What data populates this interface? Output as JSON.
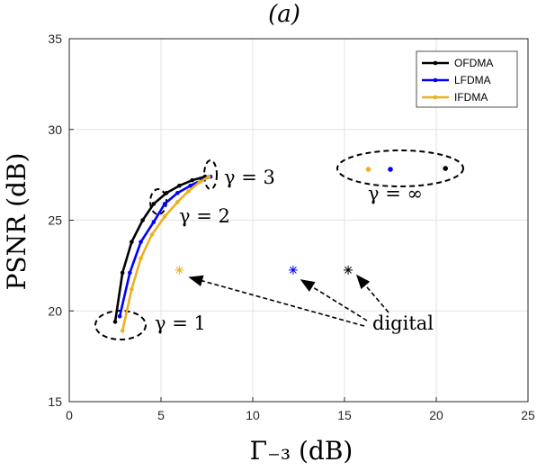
{
  "chart_data": {
    "type": "line",
    "title": "(a)",
    "xlabel": "Γ₋₃ (dB)",
    "ylabel": "PSNR (dB)",
    "xlim": [
      0,
      25
    ],
    "ylim": [
      15,
      35
    ],
    "xticks": [
      0,
      5,
      10,
      15,
      20,
      25
    ],
    "yticks": [
      15,
      20,
      25,
      30,
      35
    ],
    "grid": true,
    "legend_position": "top-right",
    "series": [
      {
        "name": "OFDMA",
        "color": "#000000",
        "x": [
          2.5,
          2.9,
          3.4,
          4.0,
          4.6,
          5.3,
          6.0,
          6.7,
          7.4
        ],
        "y": [
          19.4,
          22.1,
          23.8,
          25.0,
          25.9,
          26.5,
          26.9,
          27.2,
          27.4
        ]
      },
      {
        "name": "LFDMA",
        "color": "#0000ff",
        "x": [
          2.75,
          3.3,
          3.9,
          4.6,
          5.2,
          5.9,
          6.6,
          7.2,
          7.7
        ],
        "y": [
          19.7,
          22.1,
          23.8,
          24.9,
          25.9,
          26.5,
          26.9,
          27.2,
          27.4
        ]
      },
      {
        "name": "IFDMA",
        "color": "#edb120",
        "x": [
          2.9,
          3.4,
          3.9,
          4.5,
          5.2,
          5.9,
          6.5,
          7.1,
          7.6
        ],
        "y": [
          18.9,
          21.2,
          22.9,
          24.2,
          25.2,
          26.0,
          26.6,
          27.1,
          27.4
        ]
      }
    ],
    "infinity_points": [
      {
        "series": "IFDMA",
        "x": 16.3,
        "y": 27.8,
        "color": "#edb120"
      },
      {
        "series": "LFDMA",
        "x": 17.5,
        "y": 27.8,
        "color": "#0000ff"
      },
      {
        "series": "OFDMA",
        "x": 20.5,
        "y": 27.85,
        "color": "#000000"
      }
    ],
    "digital_points": [
      {
        "series": "IFDMA",
        "x": 6.0,
        "y": 22.25,
        "color": "#edb120"
      },
      {
        "series": "LFDMA",
        "x": 12.2,
        "y": 22.25,
        "color": "#0000ff"
      },
      {
        "series": "OFDMA",
        "x": 15.2,
        "y": 22.25,
        "color": "#000000"
      }
    ],
    "annotations": {
      "gamma1": "γ = 1",
      "gamma2": "γ = 2",
      "gamma3": "γ = 3",
      "gamma_inf": "γ = ∞",
      "digital": "digital"
    }
  }
}
